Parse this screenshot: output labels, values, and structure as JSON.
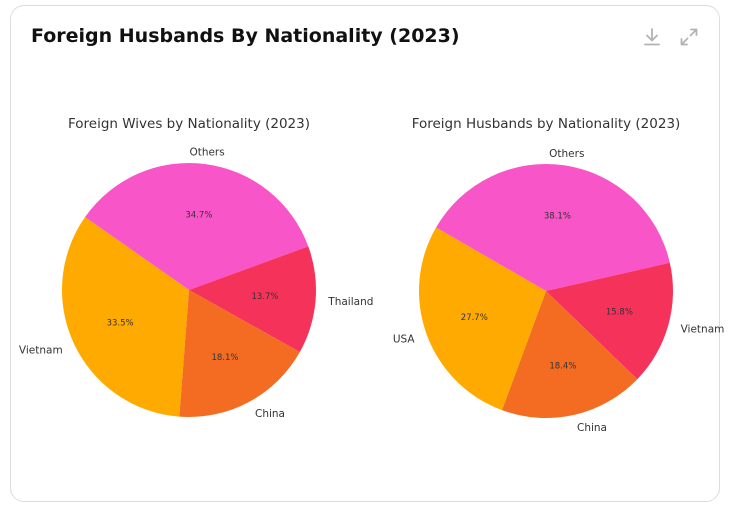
{
  "card": {
    "title": "Foreign Husbands By Nationality (2023)",
    "download_icon": "download-icon",
    "expand_icon": "expand-icon"
  },
  "chart_data": [
    {
      "type": "pie",
      "title": "Foreign Wives by Nationality (2023)",
      "labels": [
        "Others",
        "Thailand",
        "China",
        "Vietnam"
      ],
      "values": [
        34.7,
        13.7,
        18.1,
        33.5
      ],
      "percent_labels": [
        "34.7%",
        "13.7%",
        "18.1%",
        "33.5%"
      ],
      "colors": [
        "#f755c8",
        "#f5325a",
        "#f46c22",
        "#ffaa00"
      ]
    },
    {
      "type": "pie",
      "title": "Foreign Husbands by Nationality (2023)",
      "labels": [
        "Others",
        "Vietnam",
        "China",
        "USA"
      ],
      "values": [
        38.1,
        15.8,
        18.4,
        27.7
      ],
      "percent_labels": [
        "38.1%",
        "15.8%",
        "18.4%",
        "27.7%"
      ],
      "colors": [
        "#f755c8",
        "#f5325a",
        "#f46c22",
        "#ffaa00"
      ]
    }
  ]
}
